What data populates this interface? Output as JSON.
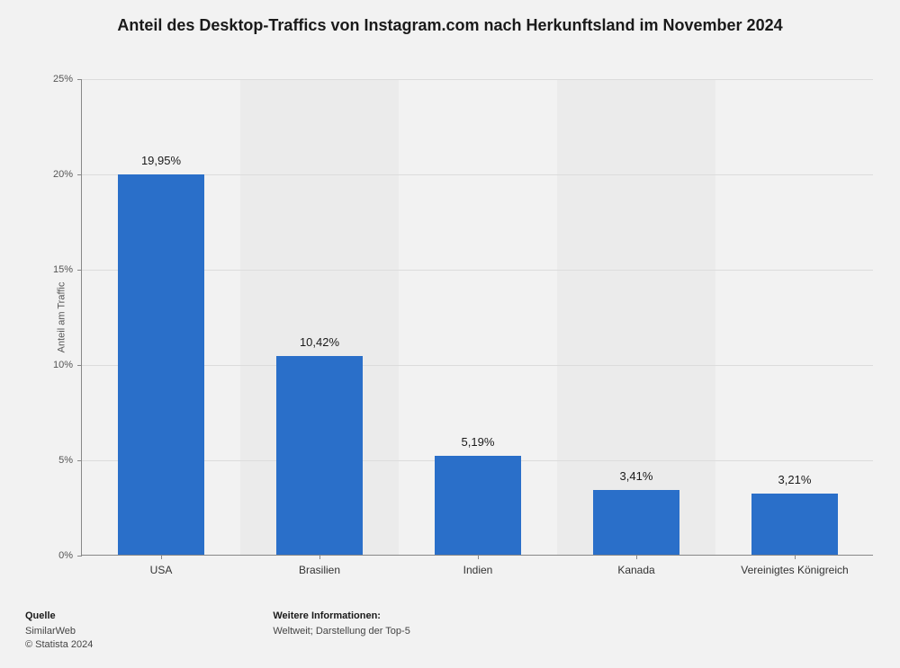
{
  "chart": {
    "type": "bar",
    "title": "Anteil des Desktop-Traffics von Instagram.com nach Herkunftsland im November 2024",
    "title_fontsize": 18,
    "y_axis_title": "Anteil am Traffic",
    "categories": [
      "USA",
      "Brasilien",
      "Indien",
      "Kanada",
      "Vereinigtes Königreich"
    ],
    "values": [
      19.95,
      10.42,
      5.19,
      3.41,
      3.21
    ],
    "value_labels": [
      "19,95%",
      "10,42%",
      "5,19%",
      "3,41%",
      "3,21%"
    ],
    "bar_color": "#2a6fc9",
    "ylim": [
      0,
      25
    ],
    "ytick_step": 5,
    "ytick_labels": [
      "0%",
      "5%",
      "10%",
      "15%",
      "20%",
      "25%"
    ],
    "background_color": "#f2f2f2",
    "alt_stripe_color": "#ebebeb",
    "grid_color": "#dcdcdc",
    "axis_color": "#888888",
    "label_fontsize": 12,
    "value_label_fontsize": 13,
    "tick_fontsize": 11,
    "bar_width_ratio": 0.55
  },
  "footer": {
    "source_heading": "Quelle",
    "source_name": "SimilarWeb",
    "copyright": "© Statista 2024",
    "info_heading": "Weitere Informationen:",
    "info_text": "Weltweit; Darstellung der Top-5"
  }
}
